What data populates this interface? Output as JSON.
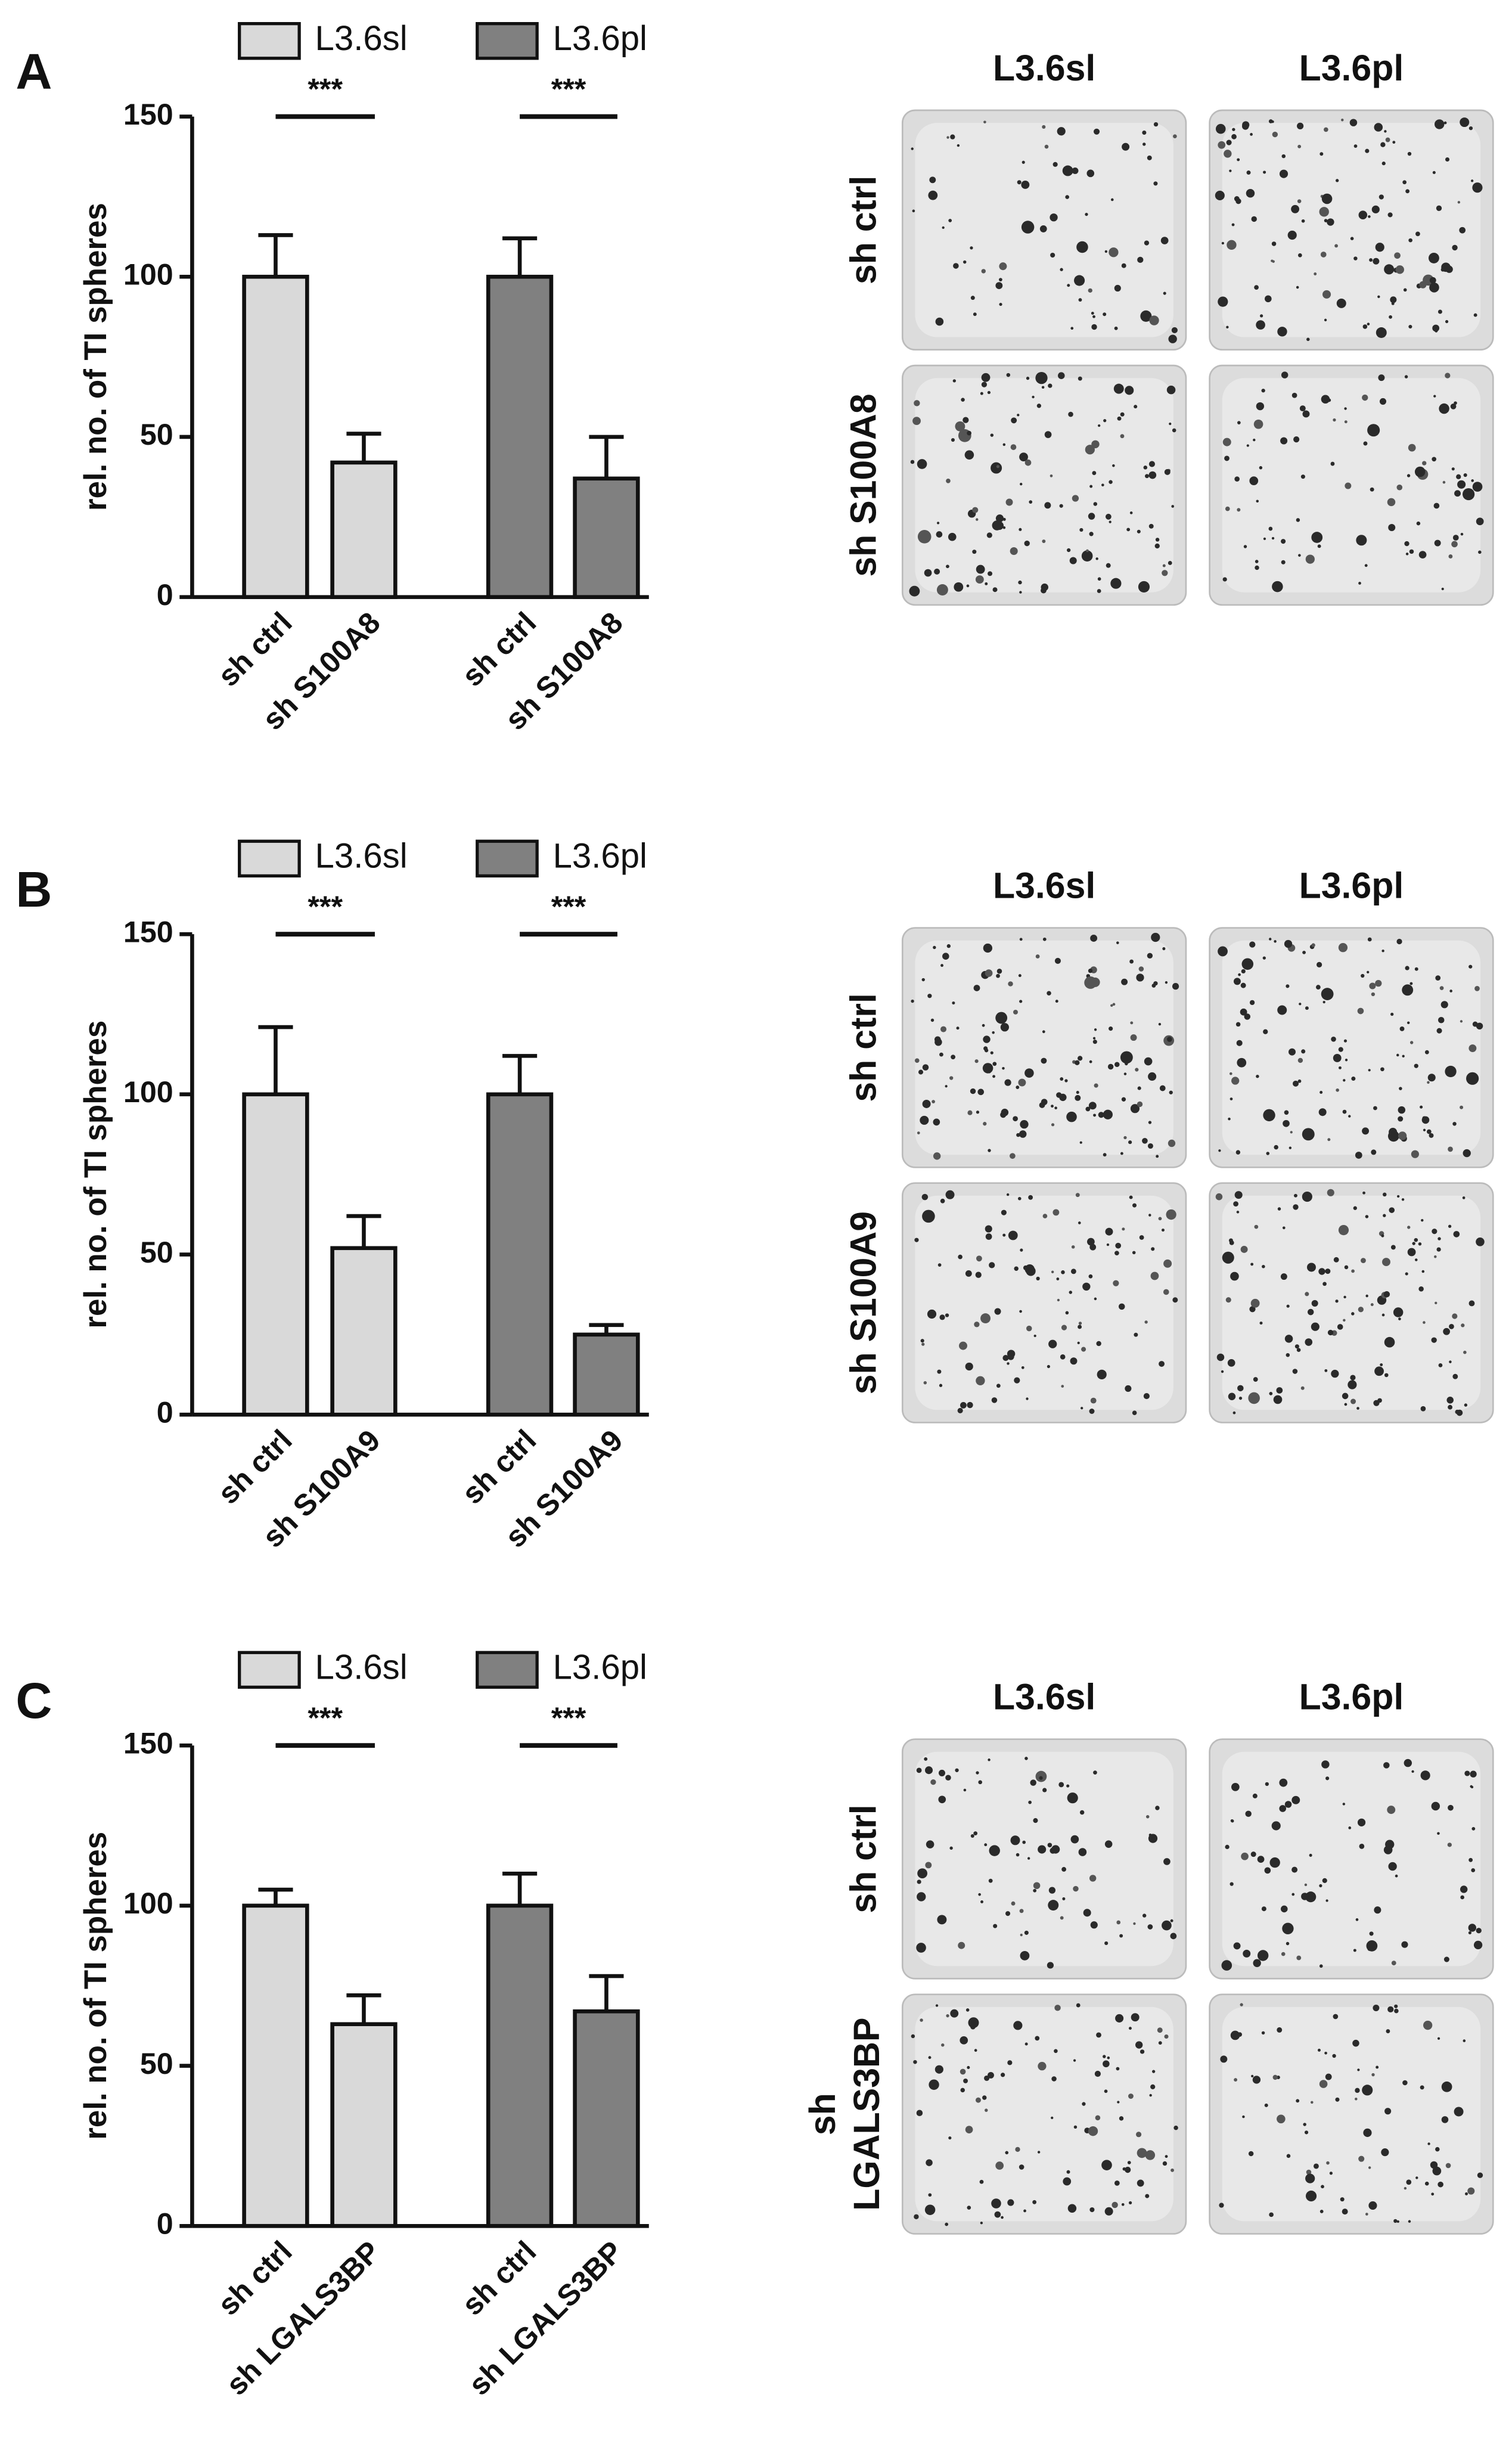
{
  "chart_data": [
    {
      "type": "bar",
      "panel": "A",
      "ylabel": "rel. no. of TI spheres",
      "categories": [
        "sh ctrl",
        "sh S100A8",
        "sh ctrl",
        "sh S100A8"
      ],
      "series": [
        {
          "name": "L3.6sl",
          "color": "#d9d9d9",
          "values": [
            100,
            42,
            null,
            null
          ],
          "errors": [
            13,
            9,
            null,
            null
          ]
        },
        {
          "name": "L3.6pl",
          "color": "#808080",
          "values": [
            null,
            null,
            100,
            37
          ],
          "errors": [
            null,
            null,
            12,
            13
          ]
        }
      ],
      "ylim": [
        0,
        150
      ],
      "yticks": [
        0,
        50,
        100,
        150
      ],
      "significance": [
        "***",
        "***"
      ],
      "image_columns": [
        "L3.6sl",
        "L3.6pl"
      ],
      "image_rows": [
        "sh ctrl",
        "sh S100A8"
      ]
    },
    {
      "type": "bar",
      "panel": "B",
      "ylabel": "rel. no. of TI spheres",
      "categories": [
        "sh ctrl",
        "sh S100A9",
        "sh ctrl",
        "sh S100A9"
      ],
      "series": [
        {
          "name": "L3.6sl",
          "color": "#d9d9d9",
          "values": [
            100,
            52,
            null,
            null
          ],
          "errors": [
            21,
            10,
            null,
            null
          ]
        },
        {
          "name": "L3.6pl",
          "color": "#808080",
          "values": [
            null,
            null,
            100,
            25
          ],
          "errors": [
            null,
            null,
            12,
            3
          ]
        }
      ],
      "ylim": [
        0,
        150
      ],
      "yticks": [
        0,
        50,
        100,
        150
      ],
      "significance": [
        "***",
        "***"
      ],
      "image_columns": [
        "L3.6sl",
        "L3.6pl"
      ],
      "image_rows": [
        "sh ctrl",
        "sh S100A9"
      ]
    },
    {
      "type": "bar",
      "panel": "C",
      "ylabel": "rel. no. of TI spheres",
      "categories": [
        "sh ctrl",
        "sh LGALS3BP",
        "sh ctrl",
        "sh LGALS3BP"
      ],
      "series": [
        {
          "name": "L3.6sl",
          "color": "#d9d9d9",
          "values": [
            100,
            63,
            null,
            null
          ],
          "errors": [
            5,
            9,
            null,
            null
          ]
        },
        {
          "name": "L3.6pl",
          "color": "#808080",
          "values": [
            null,
            null,
            100,
            67
          ],
          "errors": [
            null,
            null,
            10,
            11
          ]
        }
      ],
      "ylim": [
        0,
        150
      ],
      "yticks": [
        0,
        50,
        100,
        150
      ],
      "significance": [
        "***",
        "***"
      ],
      "image_columns": [
        "L3.6sl",
        "L3.6pl"
      ],
      "image_rows": [
        "sh ctrl",
        "sh LGALS3BP"
      ]
    }
  ]
}
